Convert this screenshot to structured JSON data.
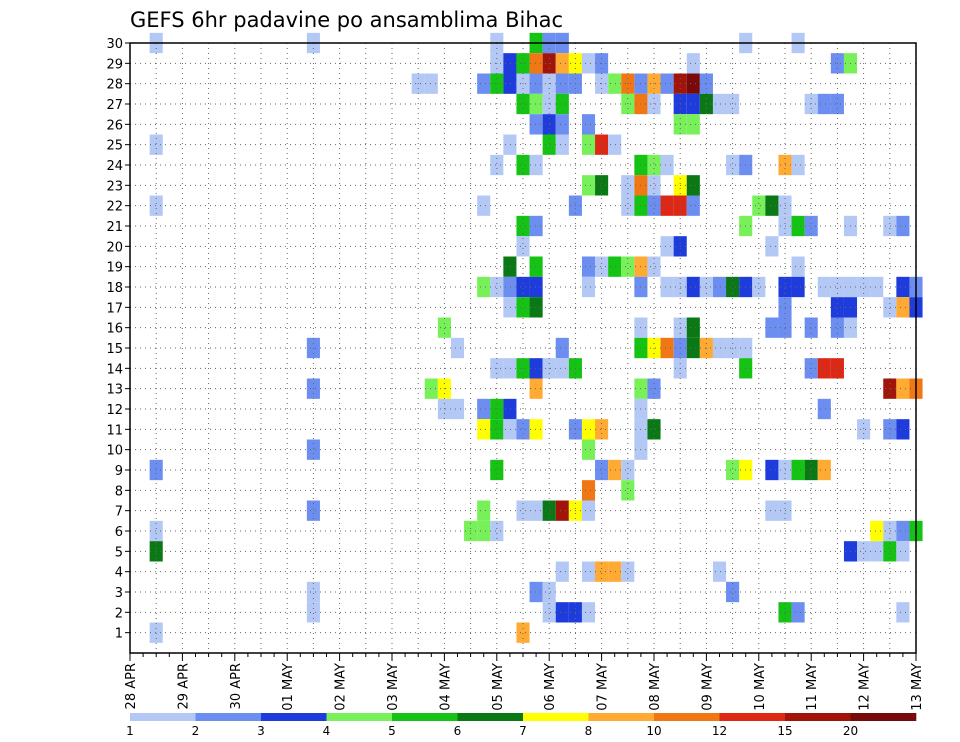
{
  "chart_data": {
    "type": "heatmap",
    "title": "GEFS 6hr padavine po ansamblima Bihac",
    "y_range": [
      0,
      30
    ],
    "y_ticks": [
      1,
      2,
      3,
      4,
      5,
      6,
      7,
      8,
      9,
      10,
      11,
      12,
      13,
      14,
      15,
      16,
      17,
      18,
      19,
      20,
      21,
      22,
      23,
      24,
      25,
      26,
      27,
      28,
      29,
      30
    ],
    "x_tick_labels": [
      "28 APR",
      "29 APR",
      "30 APR",
      "01 MAY",
      "02 MAY",
      "03 MAY",
      "04 MAY",
      "05 MAY",
      "06 MAY",
      "07 MAY",
      "08 MAY",
      "09 MAY",
      "10 MAY",
      "11 MAY",
      "12 MAY",
      "13 MAY"
    ],
    "x_unit": "6-hour step",
    "x_range": [
      0,
      60
    ],
    "grid": true,
    "legend_placement": "bottom",
    "legend_labels": [
      "1",
      "2",
      "3",
      "4",
      "5",
      "6",
      "7",
      "8",
      "10",
      "12",
      "15",
      "20"
    ],
    "colors": {
      "bin1": "#b4c8f5",
      "bin2": "#6c8ef0",
      "bin3": "#1e3cdc",
      "bin4": "#78f05a",
      "bin5": "#14c314",
      "bin6": "#0a7814",
      "bin7": "#ffff00",
      "bin8": "#ffaa32",
      "bin10": "#f07814",
      "bin12": "#dc2814",
      "bin15": "#a0140a",
      "bin20": "#780a0a"
    },
    "cells": [
      [
        30,
        2,
        "bin1"
      ],
      [
        30,
        14,
        "bin1"
      ],
      [
        30,
        28,
        "bin1"
      ],
      [
        30,
        31,
        "bin5"
      ],
      [
        30,
        32,
        "bin2"
      ],
      [
        30,
        33,
        "bin2"
      ],
      [
        30,
        47,
        "bin1"
      ],
      [
        30,
        51,
        "bin1"
      ],
      [
        29,
        28,
        "bin1"
      ],
      [
        29,
        29,
        "bin3"
      ],
      [
        29,
        30,
        "bin5"
      ],
      [
        29,
        31,
        "bin10"
      ],
      [
        29,
        32,
        "bin15"
      ],
      [
        29,
        33,
        "bin8"
      ],
      [
        29,
        34,
        "bin7"
      ],
      [
        29,
        35,
        "bin1"
      ],
      [
        29,
        36,
        "bin2"
      ],
      [
        29,
        43,
        "bin1"
      ],
      [
        29,
        54,
        "bin2"
      ],
      [
        29,
        55,
        "bin4"
      ],
      [
        28,
        22,
        "bin1"
      ],
      [
        28,
        23,
        "bin1"
      ],
      [
        28,
        27,
        "bin2"
      ],
      [
        28,
        28,
        "bin5"
      ],
      [
        28,
        29,
        "bin3"
      ],
      [
        28,
        30,
        "bin1"
      ],
      [
        28,
        31,
        "bin2"
      ],
      [
        28,
        32,
        "bin1"
      ],
      [
        28,
        33,
        "bin2"
      ],
      [
        28,
        34,
        "bin2"
      ],
      [
        28,
        36,
        "bin1"
      ],
      [
        28,
        37,
        "bin4"
      ],
      [
        28,
        38,
        "bin10"
      ],
      [
        28,
        39,
        "bin2"
      ],
      [
        28,
        40,
        "bin8"
      ],
      [
        28,
        41,
        "bin2"
      ],
      [
        28,
        42,
        "bin15"
      ],
      [
        28,
        43,
        "bin20"
      ],
      [
        28,
        44,
        "bin2"
      ],
      [
        27,
        30,
        "bin5"
      ],
      [
        27,
        31,
        "bin4"
      ],
      [
        27,
        32,
        "bin1"
      ],
      [
        27,
        33,
        "bin5"
      ],
      [
        27,
        38,
        "bin4"
      ],
      [
        27,
        39,
        "bin10"
      ],
      [
        27,
        40,
        "bin1"
      ],
      [
        27,
        42,
        "bin3"
      ],
      [
        27,
        43,
        "bin3"
      ],
      [
        27,
        44,
        "bin6"
      ],
      [
        27,
        45,
        "bin1"
      ],
      [
        27,
        46,
        "bin1"
      ],
      [
        27,
        52,
        "bin1"
      ],
      [
        27,
        53,
        "bin2"
      ],
      [
        27,
        54,
        "bin2"
      ],
      [
        26,
        31,
        "bin2"
      ],
      [
        26,
        32,
        "bin3"
      ],
      [
        26,
        33,
        "bin2"
      ],
      [
        26,
        35,
        "bin2"
      ],
      [
        26,
        42,
        "bin4"
      ],
      [
        26,
        43,
        "bin4"
      ],
      [
        25,
        2,
        "bin1"
      ],
      [
        25,
        29,
        "bin1"
      ],
      [
        25,
        32,
        "bin5"
      ],
      [
        25,
        33,
        "bin1"
      ],
      [
        25,
        35,
        "bin4"
      ],
      [
        25,
        36,
        "bin12"
      ],
      [
        25,
        37,
        "bin1"
      ],
      [
        24,
        28,
        "bin1"
      ],
      [
        24,
        30,
        "bin5"
      ],
      [
        24,
        31,
        "bin1"
      ],
      [
        24,
        39,
        "bin5"
      ],
      [
        24,
        40,
        "bin4"
      ],
      [
        24,
        41,
        "bin1"
      ],
      [
        24,
        46,
        "bin1"
      ],
      [
        24,
        47,
        "bin2"
      ],
      [
        24,
        50,
        "bin8"
      ],
      [
        24,
        51,
        "bin1"
      ],
      [
        23,
        35,
        "bin4"
      ],
      [
        23,
        36,
        "bin6"
      ],
      [
        23,
        38,
        "bin1"
      ],
      [
        23,
        39,
        "bin10"
      ],
      [
        23,
        40,
        "bin1"
      ],
      [
        23,
        42,
        "bin7"
      ],
      [
        23,
        43,
        "bin6"
      ],
      [
        22,
        2,
        "bin1"
      ],
      [
        22,
        27,
        "bin1"
      ],
      [
        22,
        34,
        "bin2"
      ],
      [
        22,
        38,
        "bin1"
      ],
      [
        22,
        39,
        "bin5"
      ],
      [
        22,
        40,
        "bin2"
      ],
      [
        22,
        41,
        "bin12"
      ],
      [
        22,
        42,
        "bin12"
      ],
      [
        22,
        43,
        "bin2"
      ],
      [
        22,
        48,
        "bin4"
      ],
      [
        22,
        49,
        "bin6"
      ],
      [
        22,
        50,
        "bin1"
      ],
      [
        21,
        30,
        "bin5"
      ],
      [
        21,
        31,
        "bin2"
      ],
      [
        21,
        47,
        "bin4"
      ],
      [
        21,
        50,
        "bin1"
      ],
      [
        21,
        51,
        "bin5"
      ],
      [
        21,
        52,
        "bin2"
      ],
      [
        21,
        55,
        "bin1"
      ],
      [
        21,
        58,
        "bin1"
      ],
      [
        21,
        59,
        "bin2"
      ],
      [
        20,
        30,
        "bin1"
      ],
      [
        20,
        41,
        "bin1"
      ],
      [
        20,
        42,
        "bin3"
      ],
      [
        20,
        49,
        "bin1"
      ],
      [
        19,
        29,
        "bin6"
      ],
      [
        19,
        31,
        "bin5"
      ],
      [
        19,
        35,
        "bin2"
      ],
      [
        19,
        36,
        "bin1"
      ],
      [
        19,
        37,
        "bin5"
      ],
      [
        19,
        38,
        "bin4"
      ],
      [
        19,
        39,
        "bin8"
      ],
      [
        19,
        40,
        "bin1"
      ],
      [
        19,
        51,
        "bin1"
      ],
      [
        18,
        27,
        "bin4"
      ],
      [
        18,
        28,
        "bin1"
      ],
      [
        18,
        29,
        "bin2"
      ],
      [
        18,
        30,
        "bin3"
      ],
      [
        18,
        31,
        "bin3"
      ],
      [
        18,
        35,
        "bin1"
      ],
      [
        18,
        39,
        "bin2"
      ],
      [
        18,
        41,
        "bin1"
      ],
      [
        18,
        42,
        "bin1"
      ],
      [
        18,
        43,
        "bin3"
      ],
      [
        18,
        44,
        "bin1"
      ],
      [
        18,
        45,
        "bin2"
      ],
      [
        18,
        46,
        "bin6"
      ],
      [
        18,
        47,
        "bin3"
      ],
      [
        18,
        48,
        "bin1"
      ],
      [
        18,
        50,
        "bin3"
      ],
      [
        18,
        51,
        "bin3"
      ],
      [
        18,
        53,
        "bin1"
      ],
      [
        18,
        54,
        "bin1"
      ],
      [
        18,
        55,
        "bin1"
      ],
      [
        18,
        56,
        "bin1"
      ],
      [
        18,
        57,
        "bin1"
      ],
      [
        18,
        59,
        "bin3"
      ],
      [
        18,
        60,
        "bin2"
      ],
      [
        17,
        29,
        "bin1"
      ],
      [
        17,
        30,
        "bin5"
      ],
      [
        17,
        31,
        "bin6"
      ],
      [
        17,
        50,
        "bin2"
      ],
      [
        17,
        54,
        "bin3"
      ],
      [
        17,
        55,
        "bin3"
      ],
      [
        17,
        58,
        "bin1"
      ],
      [
        17,
        59,
        "bin8"
      ],
      [
        17,
        60,
        "bin3"
      ],
      [
        16,
        24,
        "bin4"
      ],
      [
        16,
        39,
        "bin1"
      ],
      [
        16,
        42,
        "bin1"
      ],
      [
        16,
        43,
        "bin6"
      ],
      [
        16,
        49,
        "bin2"
      ],
      [
        16,
        50,
        "bin2"
      ],
      [
        16,
        52,
        "bin2"
      ],
      [
        16,
        54,
        "bin2"
      ],
      [
        16,
        55,
        "bin1"
      ],
      [
        15,
        14,
        "bin2"
      ],
      [
        15,
        25,
        "bin1"
      ],
      [
        15,
        33,
        "bin2"
      ],
      [
        15,
        39,
        "bin5"
      ],
      [
        15,
        40,
        "bin7"
      ],
      [
        15,
        41,
        "bin10"
      ],
      [
        15,
        42,
        "bin2"
      ],
      [
        15,
        43,
        "bin6"
      ],
      [
        15,
        44,
        "bin8"
      ],
      [
        15,
        45,
        "bin1"
      ],
      [
        15,
        46,
        "bin1"
      ],
      [
        15,
        47,
        "bin1"
      ],
      [
        14,
        28,
        "bin1"
      ],
      [
        14,
        29,
        "bin1"
      ],
      [
        14,
        30,
        "bin5"
      ],
      [
        14,
        31,
        "bin3"
      ],
      [
        14,
        32,
        "bin1"
      ],
      [
        14,
        33,
        "bin1"
      ],
      [
        14,
        34,
        "bin5"
      ],
      [
        14,
        42,
        "bin1"
      ],
      [
        14,
        47,
        "bin5"
      ],
      [
        14,
        52,
        "bin2"
      ],
      [
        14,
        53,
        "bin12"
      ],
      [
        14,
        54,
        "bin12"
      ],
      [
        13,
        14,
        "bin2"
      ],
      [
        13,
        23,
        "bin4"
      ],
      [
        13,
        24,
        "bin7"
      ],
      [
        13,
        31,
        "bin8"
      ],
      [
        13,
        39,
        "bin4"
      ],
      [
        13,
        40,
        "bin2"
      ],
      [
        13,
        58,
        "bin15"
      ],
      [
        13,
        59,
        "bin8"
      ],
      [
        13,
        60,
        "bin10"
      ],
      [
        12,
        24,
        "bin1"
      ],
      [
        12,
        25,
        "bin1"
      ],
      [
        12,
        27,
        "bin2"
      ],
      [
        12,
        28,
        "bin5"
      ],
      [
        12,
        29,
        "bin3"
      ],
      [
        12,
        39,
        "bin1"
      ],
      [
        12,
        53,
        "bin2"
      ],
      [
        11,
        27,
        "bin7"
      ],
      [
        11,
        28,
        "bin5"
      ],
      [
        11,
        29,
        "bin1"
      ],
      [
        11,
        30,
        "bin2"
      ],
      [
        11,
        31,
        "bin7"
      ],
      [
        11,
        34,
        "bin2"
      ],
      [
        11,
        35,
        "bin7"
      ],
      [
        11,
        36,
        "bin8"
      ],
      [
        11,
        39,
        "bin1"
      ],
      [
        11,
        40,
        "bin6"
      ],
      [
        11,
        56,
        "bin1"
      ],
      [
        11,
        58,
        "bin2"
      ],
      [
        11,
        59,
        "bin3"
      ],
      [
        10,
        14,
        "bin2"
      ],
      [
        10,
        35,
        "bin4"
      ],
      [
        10,
        39,
        "bin1"
      ],
      [
        9,
        2,
        "bin2"
      ],
      [
        9,
        28,
        "bin5"
      ],
      [
        9,
        36,
        "bin2"
      ],
      [
        9,
        37,
        "bin8"
      ],
      [
        9,
        38,
        "bin1"
      ],
      [
        9,
        46,
        "bin4"
      ],
      [
        9,
        47,
        "bin7"
      ],
      [
        9,
        49,
        "bin3"
      ],
      [
        9,
        50,
        "bin1"
      ],
      [
        9,
        51,
        "bin5"
      ],
      [
        9,
        52,
        "bin6"
      ],
      [
        9,
        53,
        "bin8"
      ],
      [
        8,
        35,
        "bin10"
      ],
      [
        8,
        38,
        "bin4"
      ],
      [
        7,
        14,
        "bin2"
      ],
      [
        7,
        27,
        "bin4"
      ],
      [
        7,
        30,
        "bin1"
      ],
      [
        7,
        31,
        "bin1"
      ],
      [
        7,
        32,
        "bin6"
      ],
      [
        7,
        33,
        "bin15"
      ],
      [
        7,
        34,
        "bin7"
      ],
      [
        7,
        35,
        "bin1"
      ],
      [
        7,
        49,
        "bin1"
      ],
      [
        7,
        50,
        "bin1"
      ],
      [
        6,
        2,
        "bin1"
      ],
      [
        6,
        26,
        "bin4"
      ],
      [
        6,
        27,
        "bin4"
      ],
      [
        6,
        28,
        "bin1"
      ],
      [
        6,
        57,
        "bin7"
      ],
      [
        6,
        58,
        "bin1"
      ],
      [
        6,
        59,
        "bin2"
      ],
      [
        6,
        60,
        "bin5"
      ],
      [
        5,
        2,
        "bin6"
      ],
      [
        5,
        55,
        "bin3"
      ],
      [
        5,
        56,
        "bin1"
      ],
      [
        5,
        57,
        "bin1"
      ],
      [
        5,
        58,
        "bin5"
      ],
      [
        5,
        59,
        "bin1"
      ],
      [
        4,
        33,
        "bin1"
      ],
      [
        4,
        35,
        "bin1"
      ],
      [
        4,
        36,
        "bin8"
      ],
      [
        4,
        37,
        "bin8"
      ],
      [
        4,
        38,
        "bin1"
      ],
      [
        4,
        45,
        "bin1"
      ],
      [
        3,
        14,
        "bin1"
      ],
      [
        3,
        31,
        "bin2"
      ],
      [
        3,
        32,
        "bin1"
      ],
      [
        3,
        46,
        "bin2"
      ],
      [
        2,
        14,
        "bin1"
      ],
      [
        2,
        32,
        "bin1"
      ],
      [
        2,
        33,
        "bin3"
      ],
      [
        2,
        34,
        "bin3"
      ],
      [
        2,
        35,
        "bin1"
      ],
      [
        2,
        50,
        "bin5"
      ],
      [
        2,
        51,
        "bin2"
      ],
      [
        2,
        59,
        "bin1"
      ],
      [
        1,
        2,
        "bin1"
      ],
      [
        1,
        30,
        "bin8"
      ]
    ]
  }
}
